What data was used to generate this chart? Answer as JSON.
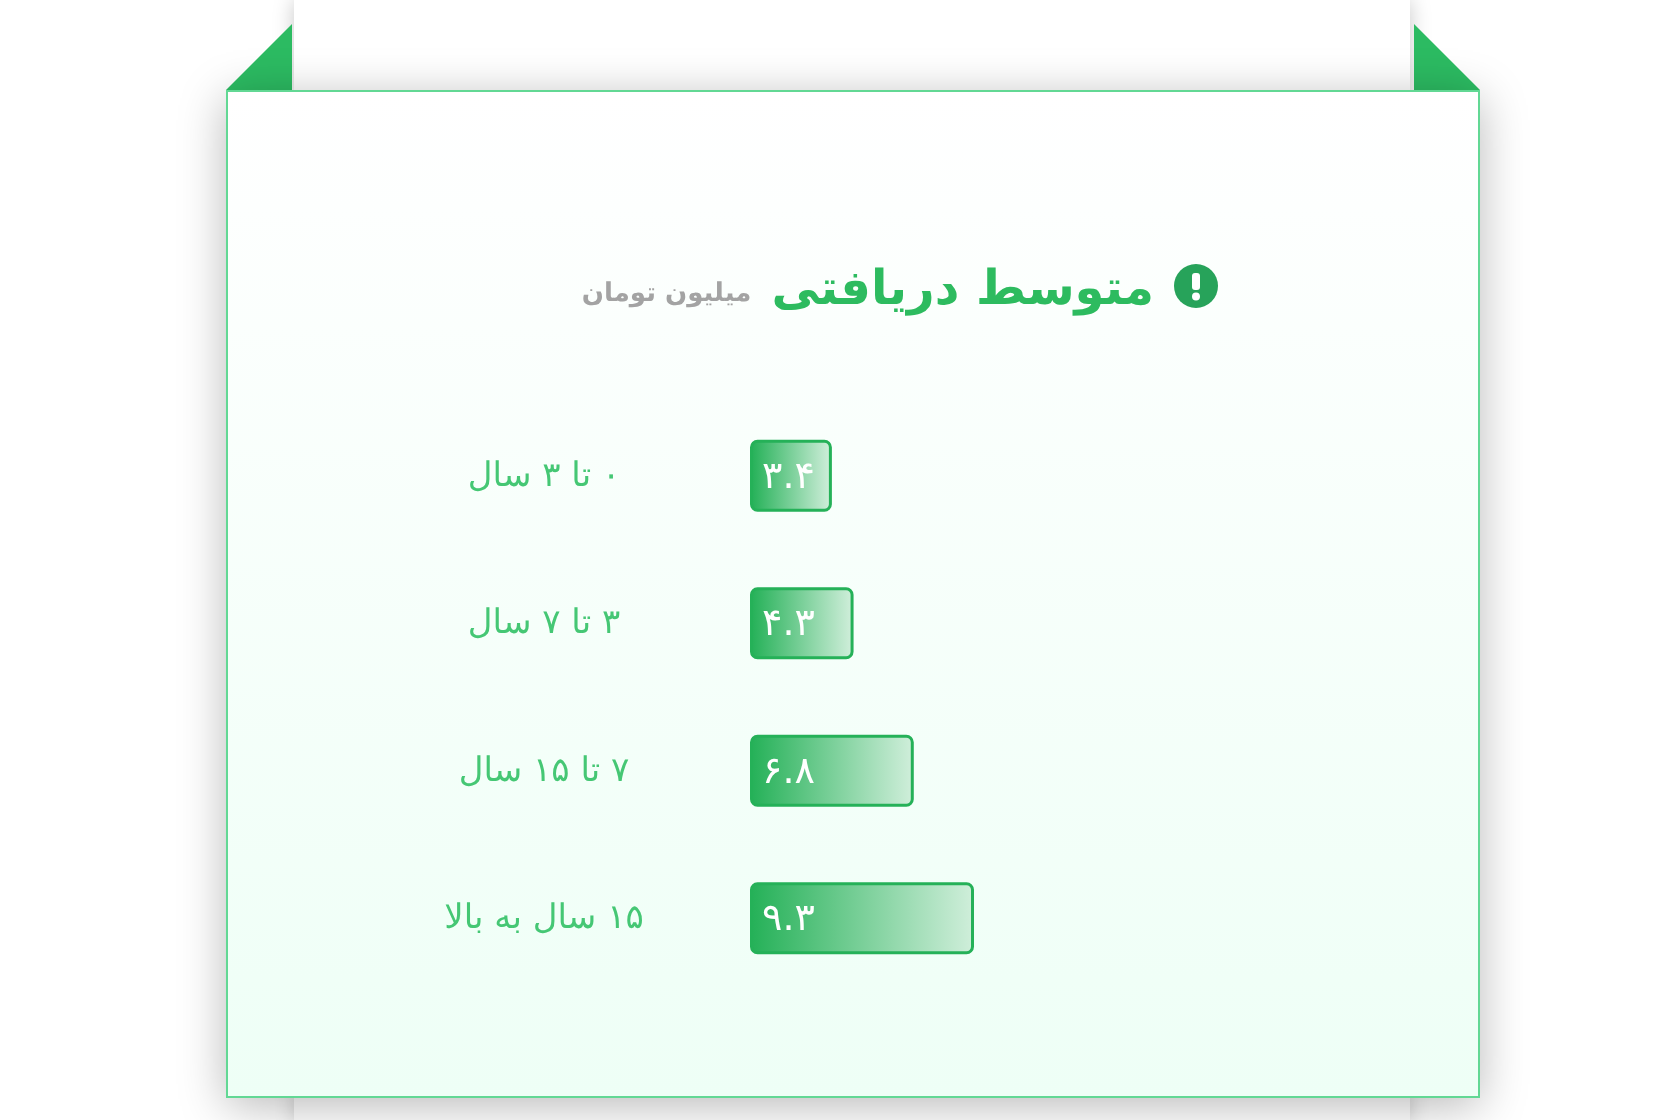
{
  "chart_data": {
    "type": "bar",
    "orientation": "horizontal",
    "title": "متوسط دریافتی",
    "subtitle": "میلیون تومان",
    "categories": [
      "۰ تا ۳ سال",
      "۳ تا ۷ سال",
      "۷ تا ۱۵ سال",
      "۱۵ سال به بالا"
    ],
    "values": [
      3.4,
      4.3,
      6.8,
      9.3
    ],
    "value_labels": [
      "۳.۴",
      "۴.۳",
      "۶.۸",
      "۹.۳"
    ],
    "color": "#25b158",
    "tick_labels": "y"
  }
}
